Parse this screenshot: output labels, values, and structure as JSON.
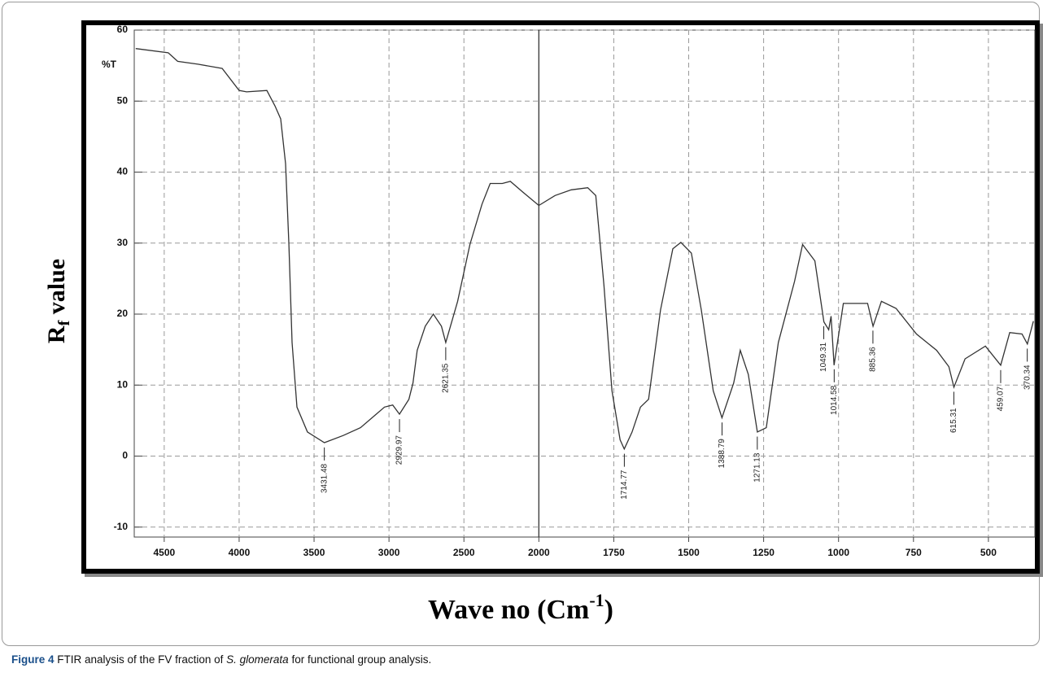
{
  "chart_data": {
    "type": "line",
    "y_unit": "%T",
    "y_label": {
      "main": "R",
      "sub": "f",
      "rest": " value"
    },
    "x_label": {
      "main": "Wave no (Cm",
      "sup": "-1",
      "rest": ")"
    },
    "color": "#333333",
    "x": [
      4690,
      4473,
      4410,
      4275,
      4113,
      4000,
      3950,
      3815,
      3760,
      3723,
      3690,
      3668,
      3647,
      3614,
      3544,
      3431,
      3305,
      3190,
      3030,
      2975,
      2930,
      2867,
      2840,
      2812,
      2758,
      2704,
      2650,
      2621,
      2542,
      2460,
      2379,
      2325,
      2244,
      2190,
      2108,
      2000,
      1946,
      1892,
      1837,
      1810,
      1783,
      1756,
      1729,
      1715,
      1689,
      1661,
      1634,
      1594,
      1553,
      1526,
      1491,
      1458,
      1418,
      1389,
      1350,
      1328,
      1301,
      1271,
      1241,
      1201,
      1147,
      1120,
      1079,
      1049,
      1033,
      1025,
      1015,
      984,
      944,
      903,
      885,
      857,
      808,
      740,
      673,
      632,
      615,
      578,
      510,
      459,
      429,
      388,
      370,
      350
    ],
    "values": [
      57.4,
      56.8,
      55.6,
      55.2,
      54.6,
      51.5,
      51.3,
      51.5,
      49.3,
      47.5,
      41.2,
      29.8,
      16.0,
      6.9,
      3.4,
      1.9,
      2.9,
      4.0,
      6.9,
      7.2,
      5.9,
      8.0,
      10.3,
      14.9,
      18.3,
      20.0,
      18.3,
      16.0,
      21.8,
      29.8,
      35.5,
      38.4,
      38.4,
      38.7,
      37.2,
      35.3,
      36.7,
      37.5,
      37.8,
      36.7,
      24.1,
      9.2,
      2.3,
      1.0,
      3.4,
      6.9,
      8.0,
      20.6,
      29.2,
      30.1,
      28.6,
      20.6,
      9.2,
      5.4,
      10.3,
      14.9,
      11.5,
      3.4,
      4.0,
      16.0,
      24.6,
      29.8,
      27.5,
      18.9,
      17.8,
      19.7,
      12.8,
      21.5,
      21.5,
      21.5,
      18.3,
      21.8,
      20.8,
      17.2,
      14.9,
      12.6,
      9.7,
      13.7,
      15.5,
      12.8,
      17.4,
      17.2,
      15.8,
      19.0
    ],
    "peak_labels": [
      3431.48,
      2929.97,
      2621.35,
      1714.77,
      1388.79,
      1271.13,
      1049.31,
      1014.58,
      885.36,
      615.31,
      459.07,
      370.34
    ],
    "xlim": [
      4700,
      345
    ],
    "xticks": [
      4500,
      4000,
      3500,
      3000,
      2500,
      2000,
      1750,
      1500,
      1250,
      1000,
      750,
      500
    ],
    "ylim": [
      -11.4,
      60
    ],
    "yticks": [
      60,
      50,
      40,
      30,
      20,
      10,
      0,
      -10
    ],
    "grid": true
  },
  "caption": {
    "label": "Figure 4",
    "text": "FTIR analysis of the FV fraction of",
    "species": "S. glomerata",
    "rest": "for functional group analysis."
  }
}
